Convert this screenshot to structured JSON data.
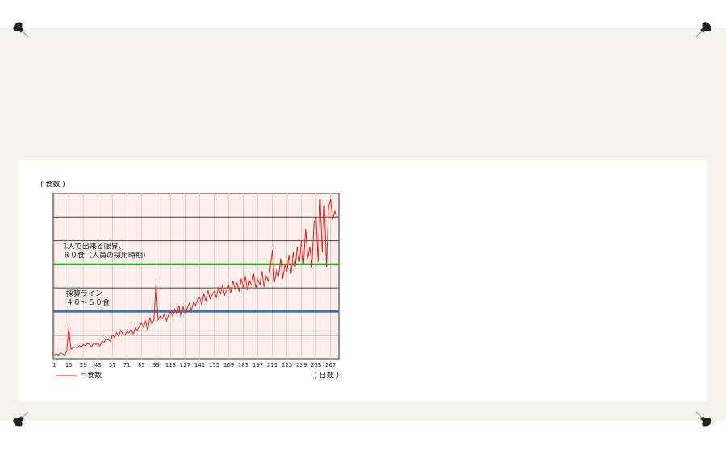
{
  "chart_data": {
    "type": "line",
    "y_label": "( 食数 )",
    "x_label": "( 日数 )",
    "xlim": [
      0,
      275
    ],
    "xticks": [
      1,
      15,
      29,
      43,
      57,
      71,
      85,
      99,
      113,
      127,
      141,
      155,
      169,
      183,
      197,
      211,
      225,
      239,
      253,
      267
    ],
    "ylim": [
      0,
      140
    ],
    "grid_lines": [
      20,
      40,
      60,
      80,
      100,
      120
    ],
    "thresholds": [
      {
        "value": 80,
        "color": "#3aa63a",
        "label": [
          "1人で出来る限界、",
          "８０食（人員の採用時期）"
        ]
      },
      {
        "value": 40,
        "color": "#1f6fc0",
        "label": [
          "採算ライン",
          "４０〜５０食"
        ]
      }
    ],
    "series": [
      {
        "name": "＝食数",
        "color": "#e8201c",
        "x": [
          1,
          3,
          5,
          7,
          9,
          11,
          13,
          15,
          17,
          19,
          21,
          23,
          25,
          27,
          29,
          31,
          33,
          35,
          37,
          39,
          41,
          43,
          45,
          47,
          49,
          51,
          53,
          55,
          57,
          59,
          61,
          63,
          65,
          67,
          69,
          71,
          73,
          75,
          77,
          79,
          81,
          83,
          85,
          87,
          89,
          91,
          93,
          95,
          97,
          99,
          101,
          103,
          105,
          107,
          109,
          111,
          113,
          115,
          117,
          119,
          121,
          123,
          125,
          127,
          129,
          131,
          133,
          135,
          137,
          139,
          141,
          143,
          145,
          147,
          149,
          151,
          153,
          155,
          157,
          159,
          161,
          163,
          165,
          167,
          169,
          171,
          173,
          175,
          177,
          179,
          181,
          183,
          185,
          187,
          189,
          191,
          193,
          195,
          197,
          199,
          201,
          203,
          205,
          207,
          209,
          211,
          213,
          215,
          217,
          219,
          221,
          223,
          225,
          227,
          229,
          231,
          233,
          235,
          237,
          239,
          241,
          243,
          245,
          247,
          249,
          251,
          253,
          255,
          257,
          259,
          261,
          263,
          265,
          267,
          269,
          271,
          273
        ],
        "values": [
          3,
          4,
          3,
          5,
          4,
          3,
          6,
          27,
          8,
          9,
          10,
          9,
          11,
          10,
          12,
          11,
          13,
          12,
          10,
          14,
          12,
          13,
          11,
          15,
          14,
          17,
          16,
          15,
          20,
          18,
          22,
          19,
          24,
          21,
          20,
          23,
          22,
          25,
          21,
          26,
          24,
          28,
          30,
          27,
          32,
          24,
          35,
          29,
          33,
          65,
          33,
          36,
          34,
          38,
          32,
          37,
          40,
          36,
          42,
          38,
          45,
          35,
          44,
          39,
          43,
          47,
          41,
          48,
          45,
          50,
          52,
          46,
          55,
          49,
          58,
          51,
          54,
          57,
          52,
          60,
          55,
          63,
          54,
          58,
          62,
          56,
          66,
          59,
          64,
          57,
          68,
          60,
          70,
          58,
          66,
          62,
          72,
          60,
          67,
          63,
          74,
          61,
          70,
          66,
          78,
          92,
          65,
          75,
          70,
          85,
          68,
          80,
          74,
          88,
          72,
          90,
          78,
          95,
          82,
          100,
          80,
          110,
          85,
          95,
          78,
          115,
          120,
          82,
          135,
          90,
          130,
          78,
          128,
          135,
          118,
          125,
          120
        ]
      }
    ]
  }
}
